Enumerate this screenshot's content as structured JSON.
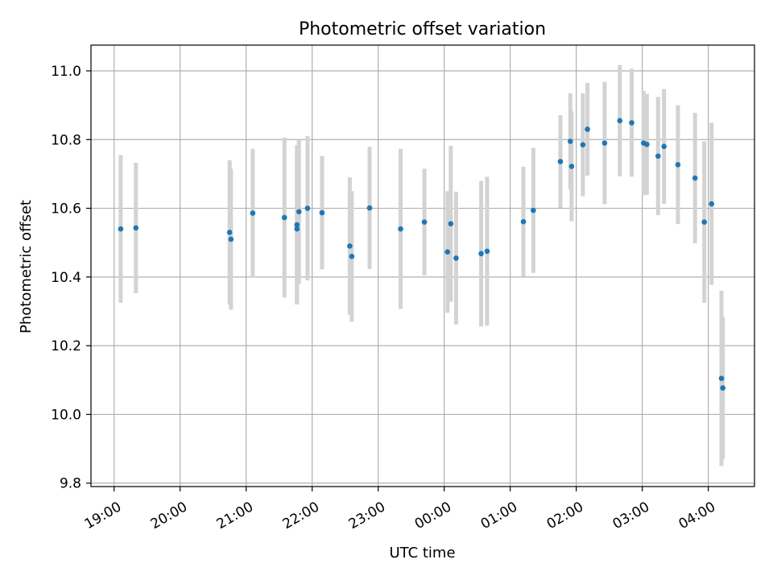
{
  "chart_data": {
    "type": "scatter",
    "title": "Photometric offset variation",
    "xlabel": "UTC time",
    "ylabel": "Photometric offset",
    "grid": true,
    "legend": "none",
    "x_unit": "UTC time (hours; values past 24 are after midnight of the next day)",
    "xlim": [
      18.65,
      28.7
    ],
    "ylim": [
      9.79,
      11.075
    ],
    "x_ticks": [
      19,
      20,
      21,
      22,
      23,
      24,
      25,
      26,
      27,
      28
    ],
    "x_tick_labels": [
      "19:00",
      "20:00",
      "21:00",
      "22:00",
      "23:00",
      "00:00",
      "01:00",
      "02:00",
      "03:00",
      "04:00"
    ],
    "y_ticks": [
      9.8,
      10.0,
      10.2,
      10.4,
      10.6,
      10.8,
      11.0
    ],
    "y_tick_labels": [
      "9.8",
      "10.0",
      "10.2",
      "10.4",
      "10.6",
      "10.8",
      "11.0"
    ],
    "colors": {
      "point": "#1f77b4",
      "errorbar": "#d3d3d3",
      "grid": "#b0b0b0"
    },
    "points": [
      {
        "x": 19.1,
        "y": 10.54,
        "err": 0.215
      },
      {
        "x": 19.33,
        "y": 10.543,
        "err": 0.19
      },
      {
        "x": 20.75,
        "y": 10.53,
        "err": 0.21
      },
      {
        "x": 20.77,
        "y": 10.51,
        "err": 0.205
      },
      {
        "x": 21.1,
        "y": 10.586,
        "err": 0.187
      },
      {
        "x": 21.58,
        "y": 10.573,
        "err": 0.233
      },
      {
        "x": 21.77,
        "y": 10.552,
        "err": 0.232
      },
      {
        "x": 21.77,
        "y": 10.54,
        "err": 0.22
      },
      {
        "x": 21.8,
        "y": 10.59,
        "err": 0.21
      },
      {
        "x": 21.93,
        "y": 10.6,
        "err": 0.21
      },
      {
        "x": 22.15,
        "y": 10.587,
        "err": 0.165
      },
      {
        "x": 22.57,
        "y": 10.49,
        "err": 0.2
      },
      {
        "x": 22.6,
        "y": 10.46,
        "err": 0.19
      },
      {
        "x": 22.87,
        "y": 10.601,
        "err": 0.178
      },
      {
        "x": 23.34,
        "y": 10.54,
        "err": 0.233
      },
      {
        "x": 23.7,
        "y": 10.56,
        "err": 0.155
      },
      {
        "x": 24.05,
        "y": 10.473,
        "err": 0.177
      },
      {
        "x": 24.1,
        "y": 10.555,
        "err": 0.227
      },
      {
        "x": 24.18,
        "y": 10.455,
        "err": 0.193
      },
      {
        "x": 24.56,
        "y": 10.468,
        "err": 0.212
      },
      {
        "x": 24.65,
        "y": 10.475,
        "err": 0.217
      },
      {
        "x": 25.2,
        "y": 10.561,
        "err": 0.16
      },
      {
        "x": 25.35,
        "y": 10.594,
        "err": 0.182
      },
      {
        "x": 25.76,
        "y": 10.736,
        "err": 0.135
      },
      {
        "x": 25.91,
        "y": 10.795,
        "err": 0.14
      },
      {
        "x": 25.93,
        "y": 10.722,
        "err": 0.16
      },
      {
        "x": 26.1,
        "y": 10.785,
        "err": 0.15
      },
      {
        "x": 26.17,
        "y": 10.83,
        "err": 0.135
      },
      {
        "x": 26.43,
        "y": 10.79,
        "err": 0.178
      },
      {
        "x": 26.66,
        "y": 10.855,
        "err": 0.162
      },
      {
        "x": 26.84,
        "y": 10.849,
        "err": 0.157
      },
      {
        "x": 27.02,
        "y": 10.79,
        "err": 0.152
      },
      {
        "x": 27.07,
        "y": 10.786,
        "err": 0.147
      },
      {
        "x": 27.24,
        "y": 10.752,
        "err": 0.172
      },
      {
        "x": 27.33,
        "y": 10.78,
        "err": 0.167
      },
      {
        "x": 27.54,
        "y": 10.727,
        "err": 0.173
      },
      {
        "x": 27.8,
        "y": 10.688,
        "err": 0.19
      },
      {
        "x": 27.94,
        "y": 10.56,
        "err": 0.235
      },
      {
        "x": 28.05,
        "y": 10.613,
        "err": 0.236
      },
      {
        "x": 28.2,
        "y": 10.105,
        "err": 0.255
      },
      {
        "x": 28.22,
        "y": 10.077,
        "err": 0.207
      }
    ]
  }
}
